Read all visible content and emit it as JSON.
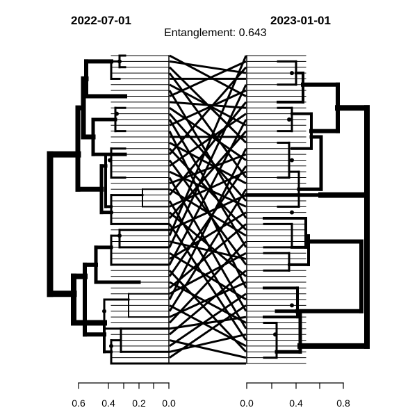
{
  "figure": {
    "left_title": "2022-07-01",
    "right_title": "2023-01-01",
    "subtitle": "Entanglement: 0.643"
  },
  "axes": {
    "left": {
      "ticks": [
        "0.6",
        "0.4",
        "0.2",
        "0.0"
      ],
      "values": [
        0.6,
        0.4,
        0.2,
        0.0
      ],
      "range": [
        0.0,
        0.6
      ],
      "direction": "reversed"
    },
    "right": {
      "ticks": [
        "0.0",
        "0.4",
        "0.8"
      ],
      "minor_ticks": [
        0.2,
        0.6
      ],
      "values": [
        0.0,
        0.4,
        0.8
      ],
      "range": [
        0.0,
        0.8
      ]
    }
  },
  "chart_data": {
    "type": "tanglegram",
    "leaf_count": 54,
    "entanglement": 0.643,
    "left_tree": "2022-07-01",
    "right_tree": "2023-01-01",
    "colors": {
      "lines": "#000000",
      "background": "#ffffff"
    }
  }
}
